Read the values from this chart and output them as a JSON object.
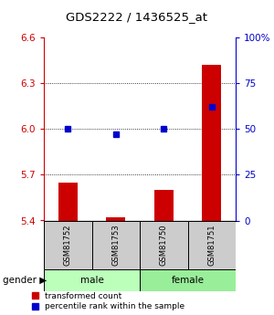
{
  "title": "GDS2222 / 1436525_at",
  "samples": [
    "GSM81752",
    "GSM81753",
    "GSM81750",
    "GSM81751"
  ],
  "transformed_counts": [
    5.65,
    5.42,
    5.6,
    6.42
  ],
  "percentile_ranks": [
    50,
    47,
    50,
    62
  ],
  "ylim_left": [
    5.4,
    6.6
  ],
  "ylim_right": [
    0,
    100
  ],
  "yticks_left": [
    5.4,
    5.7,
    6.0,
    6.3,
    6.6
  ],
  "yticks_right": [
    0,
    25,
    50,
    75,
    100
  ],
  "ytick_labels_right": [
    "0",
    "25",
    "50",
    "75",
    "100%"
  ],
  "bar_color": "#cc0000",
  "dot_color": "#0000cc",
  "bar_width": 0.4,
  "male_color": "#bbffbb",
  "female_color": "#99ee99",
  "sample_box_color": "#cccccc",
  "left_axis_color": "#cc0000",
  "right_axis_color": "#0000cc",
  "legend_red_label": "transformed count",
  "legend_blue_label": "percentile rank within the sample"
}
